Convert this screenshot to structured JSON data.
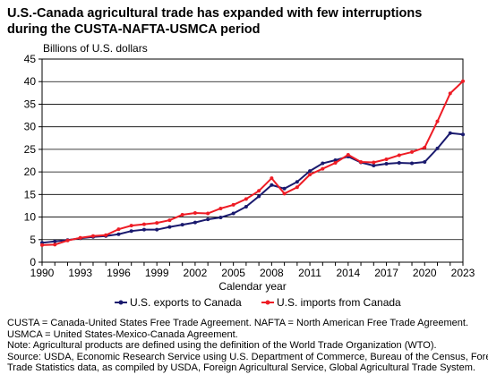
{
  "title_line1": "U.S.-Canada agricultural trade has expanded with few interruptions",
  "title_line2": "during the CUSTA-NAFTA-USMCA period",
  "chart_data": {
    "type": "line",
    "ylabel": "Billions of U.S. dollars",
    "xlabel": "Calendar year",
    "ylim": [
      0,
      45
    ],
    "xlim": [
      1990,
      2023
    ],
    "yticks": [
      0,
      5,
      10,
      15,
      20,
      25,
      30,
      35,
      40,
      45
    ],
    "xticks": [
      1990,
      1993,
      1996,
      1999,
      2002,
      2005,
      2008,
      2011,
      2014,
      2017,
      2020,
      2023
    ],
    "grid": true,
    "legend_position": "bottom",
    "x": [
      1990,
      1991,
      1992,
      1993,
      1994,
      1995,
      1996,
      1997,
      1998,
      1999,
      2000,
      2001,
      2002,
      2003,
      2004,
      2005,
      2006,
      2007,
      2008,
      2009,
      2010,
      2011,
      2012,
      2013,
      2014,
      2015,
      2016,
      2017,
      2018,
      2019,
      2020,
      2021,
      2022,
      2023
    ],
    "series": [
      {
        "name": "U.S. exports to Canada",
        "color": "#1a1a6e",
        "values": [
          4.3,
          4.6,
          4.9,
          5.3,
          5.6,
          5.8,
          6.2,
          6.9,
          7.2,
          7.2,
          7.8,
          8.3,
          8.8,
          9.5,
          9.9,
          10.8,
          12.3,
          14.6,
          17.1,
          16.3,
          17.8,
          20.2,
          21.9,
          22.6,
          23.4,
          22.1,
          21.4,
          21.8,
          22.0,
          21.9,
          22.2,
          25.2,
          28.6,
          28.3
        ]
      },
      {
        "name": "U.S. imports from Canada",
        "color": "#ee1c25",
        "values": [
          3.8,
          3.9,
          4.8,
          5.4,
          5.8,
          6.0,
          7.3,
          8.1,
          8.4,
          8.7,
          9.3,
          10.5,
          10.9,
          10.8,
          11.9,
          12.7,
          14.0,
          15.8,
          18.6,
          15.2,
          16.6,
          19.4,
          20.7,
          22.0,
          23.8,
          22.2,
          22.1,
          22.8,
          23.7,
          24.4,
          25.4,
          31.2,
          37.4,
          40.1
        ]
      }
    ]
  },
  "notes": [
    "CUSTA = Canada-United States Free Trade Agreement. NAFTA = North American Free Trade Agreement.",
    "USMCA = United States-Mexico-Canada Agreement.",
    "Note: Agricultural products are defined using the definition of the World Trade Organization (WTO).",
    "Source: USDA, Economic Research Service using U.S. Department of Commerce, Bureau of the Census, Foreign",
    "Trade Statistics data, as compiled by USDA, Foreign Agricultural Service, Global Agricultural Trade System."
  ]
}
